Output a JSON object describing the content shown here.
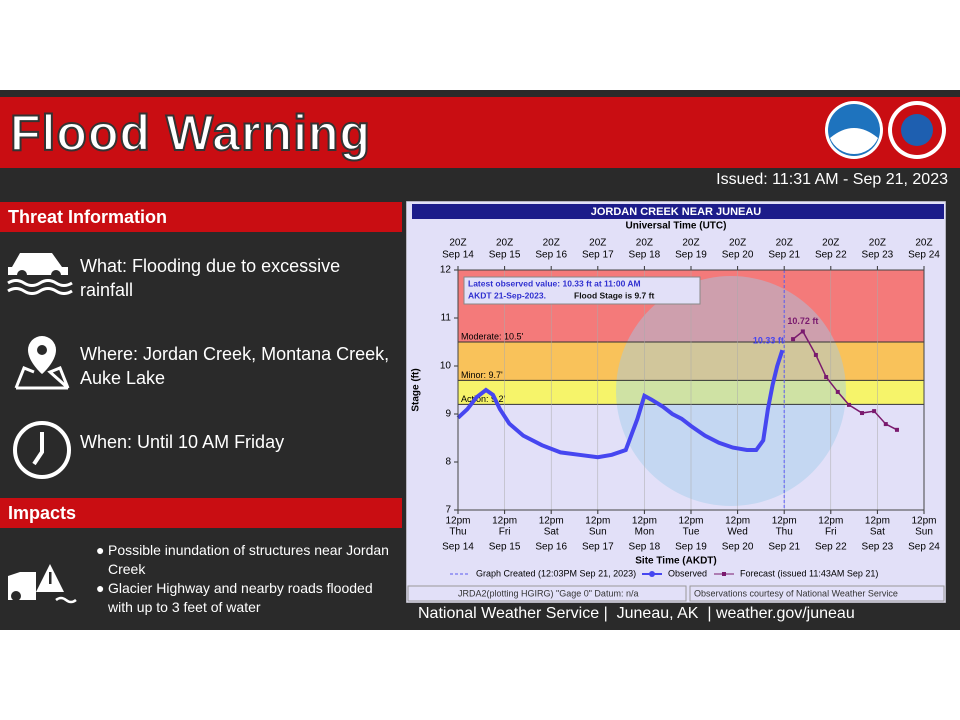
{
  "header": {
    "title": "Flood Warning",
    "issued": "Issued: 11:31 AM - Sep 21, 2023"
  },
  "threat": {
    "heading": "Threat Information",
    "items": [
      "What: Flooding due to excessive rainfall",
      "Where: Jordan Creek, Montana Creek, Auke Lake",
      "When: Until 10 AM Friday"
    ]
  },
  "impacts": {
    "heading": "Impacts",
    "items": [
      "Possible inundation of structures near Jordan Creek",
      "Glacier Highway and nearby roads flooded with up to 3 feet of water"
    ]
  },
  "footer": "National Weather Service |  Juneau, AK  | weather.gov/juneau",
  "chart_data": {
    "type": "line",
    "title": "JORDAN CREEK NEAR JUNEAU",
    "top_axis_title": "Universal Time (UTC)",
    "x_label": "Site Time (AKDT)",
    "y_label": "Stage (ft)",
    "xlim": [
      0,
      10
    ],
    "xticks": [
      {
        "value": 0,
        "label": "12pm"
      },
      {
        "value": 1,
        "label": "12pm"
      },
      {
        "value": 2,
        "label": "12pm"
      },
      {
        "value": 3,
        "label": "12pm"
      },
      {
        "value": 4,
        "label": "12pm"
      },
      {
        "value": 5,
        "label": "12pm"
      },
      {
        "value": 6,
        "label": "12pm"
      },
      {
        "value": 7,
        "label": "12pm"
      },
      {
        "value": 8,
        "label": "12pm"
      },
      {
        "value": 9,
        "label": "12pm"
      },
      {
        "value": 10,
        "label": "12pm"
      }
    ],
    "xtick_days": [
      "Thu",
      "Fri",
      "Sat",
      "Sun",
      "Mon",
      "Tue",
      "Wed",
      "Thu",
      "Fri",
      "Sat",
      "Sun"
    ],
    "xtick_dates": [
      "Sep 14",
      "Sep 15",
      "Sep 16",
      "Sep 17",
      "Sep 18",
      "Sep 19",
      "Sep 20",
      "Sep 21",
      "Sep 22",
      "Sep 23",
      "Sep 24"
    ],
    "top_times": [
      "20Z",
      "20Z",
      "20Z",
      "20Z",
      "20Z",
      "20Z",
      "20Z",
      "20Z",
      "20Z",
      "20Z",
      "20Z"
    ],
    "top_dates": [
      "Sep 14",
      "Sep 15",
      "Sep 16",
      "Sep 17",
      "Sep 18",
      "Sep 19",
      "Sep 20",
      "Sep 21",
      "Sep 22",
      "Sep 23",
      "Sep 24"
    ],
    "ylim": [
      7,
      12
    ],
    "yticks": [
      7,
      8,
      9,
      10,
      11,
      12
    ],
    "thresholds": [
      {
        "label": "Action: 9.2'",
        "value": 9.2,
        "color": "#f6f46a"
      },
      {
        "label": "Minor: 9.7'",
        "value": 9.7,
        "color": "#f9c25a"
      },
      {
        "label": "Moderate: 10.5'",
        "value": 10.5,
        "color": "#f47a7a"
      }
    ],
    "info_lines": [
      "Latest observed value: 10.33 ft at 11:00 AM",
      "AKDT 21-Sep-2023.",
      "Flood Stage is 9.7 ft"
    ],
    "graph_created": {
      "label": "Graph Created (12:03PM Sep 21, 2023)",
      "x": 7.0
    },
    "series": [
      {
        "name": "Observed",
        "color": "#4646f0",
        "x": [
          0,
          0.2,
          0.4,
          0.6,
          0.75,
          0.9,
          1.1,
          1.4,
          1.8,
          2.2,
          2.6,
          3.0,
          3.3,
          3.6,
          3.85,
          4.0,
          4.15,
          4.4,
          4.6,
          4.8,
          5.0,
          5.3,
          5.6,
          5.9,
          6.2,
          6.4,
          6.55,
          6.65,
          6.75,
          6.85,
          6.96
        ],
        "values": [
          8.92,
          9.1,
          9.35,
          9.5,
          9.4,
          9.1,
          8.8,
          8.55,
          8.35,
          8.2,
          8.15,
          8.1,
          8.15,
          8.25,
          8.9,
          9.38,
          9.3,
          9.15,
          9.0,
          8.9,
          8.75,
          8.55,
          8.4,
          8.3,
          8.25,
          8.25,
          8.45,
          9.1,
          9.6,
          10.0,
          10.33
        ],
        "value_labels": [
          null,
          null,
          null,
          null,
          null,
          null,
          null,
          null,
          null,
          null,
          null,
          null,
          null,
          null,
          null,
          null,
          null,
          null,
          null,
          null,
          null,
          null,
          null,
          null,
          null,
          null,
          null,
          null,
          null,
          null,
          "10.33 ft"
        ]
      },
      {
        "name": "Forecast (issued 11:43AM Sep 21)",
        "color": "#7a1a6e",
        "x": [
          7.19,
          7.4,
          7.68,
          7.9,
          8.15,
          8.39,
          8.67,
          8.93,
          9.18,
          9.42
        ],
        "values": [
          10.56,
          10.72,
          10.23,
          9.77,
          9.46,
          9.19,
          9.02,
          9.06,
          8.79,
          8.67
        ],
        "value_labels": [
          null,
          "10.72 ft",
          null,
          null,
          null,
          null,
          null,
          null,
          null,
          null
        ]
      }
    ],
    "footnote_left": "JRDA2(plotting HGIRG) \"Gage 0\" Datum: n/a",
    "footnote_right": "Observations courtesy of National Weather Service"
  }
}
